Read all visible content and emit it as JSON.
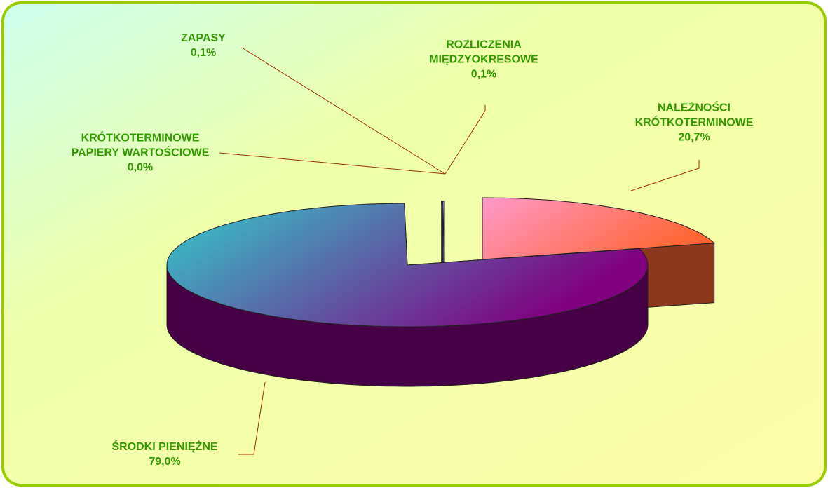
{
  "chart_data": {
    "type": "pie3d",
    "categories": [
      "NALEŻNOŚCI KRÓTKOTERMINOWE",
      "ŚRODKI PIENIĘŻNE",
      "ZAPASY",
      "KRÓTKOTERMINOWE PAPIERY WARTOŚCIOWE",
      "ROZLICZENIA MIĘDZYOKRESOWE"
    ],
    "values": [
      20.7,
      79.0,
      0.1,
      0.0,
      0.1
    ],
    "value_labels": [
      "20,7%",
      "79,0%",
      "0,1%",
      "0,0%",
      "0,1%"
    ],
    "colors": [
      "#ff6633",
      "#800080",
      "#9999ff",
      "#9999ff",
      "#9999ff"
    ]
  }
}
